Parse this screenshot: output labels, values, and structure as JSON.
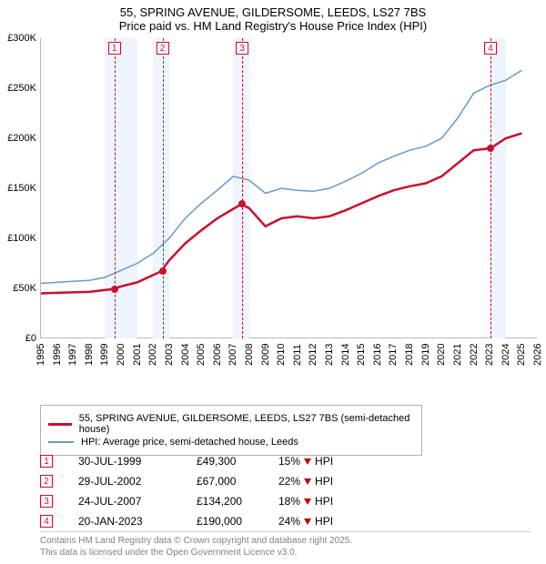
{
  "title_line1": "55, SPRING AVENUE, GILDERSOME, LEEDS, LS27 7BS",
  "title_line2": "Price paid vs. HM Land Registry's House Price Index (HPI)",
  "chart": {
    "type": "line",
    "background_color": "#ffffff",
    "shade_color": "#eef4fb",
    "x_min": 1995,
    "x_max": 2026,
    "y_min": 0,
    "y_max": 300000,
    "y_ticks": [
      {
        "v": 0,
        "label": "£0"
      },
      {
        "v": 50000,
        "label": "£50K"
      },
      {
        "v": 100000,
        "label": "£100K"
      },
      {
        "v": 150000,
        "label": "£150K"
      },
      {
        "v": 200000,
        "label": "£200K"
      },
      {
        "v": 250000,
        "label": "£250K"
      },
      {
        "v": 300000,
        "label": "£300K"
      }
    ],
    "x_ticks": [
      1995,
      1996,
      1997,
      1998,
      1999,
      2000,
      2001,
      2002,
      2003,
      2004,
      2005,
      2006,
      2007,
      2008,
      2009,
      2010,
      2011,
      2012,
      2013,
      2014,
      2015,
      2016,
      2017,
      2018,
      2019,
      2020,
      2021,
      2022,
      2023,
      2024,
      2025,
      2026
    ],
    "shade_bands": [
      {
        "from": 1999,
        "to": 2001
      },
      {
        "from": 2002,
        "to": 2003
      },
      {
        "from": 2007,
        "to": 2008
      },
      {
        "from": 2023,
        "to": 2024
      }
    ],
    "series_blue": {
      "color": "#6699cc",
      "width": 1.5,
      "points": [
        [
          1995,
          55000
        ],
        [
          1996,
          56000
        ],
        [
          1997,
          57000
        ],
        [
          1998,
          58000
        ],
        [
          1999,
          61000
        ],
        [
          2000,
          68000
        ],
        [
          2001,
          75000
        ],
        [
          2002,
          85000
        ],
        [
          2003,
          100000
        ],
        [
          2004,
          120000
        ],
        [
          2005,
          135000
        ],
        [
          2006,
          148000
        ],
        [
          2007,
          162000
        ],
        [
          2008,
          158000
        ],
        [
          2009,
          145000
        ],
        [
          2010,
          150000
        ],
        [
          2011,
          148000
        ],
        [
          2012,
          147000
        ],
        [
          2013,
          150000
        ],
        [
          2014,
          157000
        ],
        [
          2015,
          165000
        ],
        [
          2016,
          175000
        ],
        [
          2017,
          182000
        ],
        [
          2018,
          188000
        ],
        [
          2019,
          192000
        ],
        [
          2020,
          200000
        ],
        [
          2021,
          220000
        ],
        [
          2022,
          245000
        ],
        [
          2023,
          253000
        ],
        [
          2024,
          258000
        ],
        [
          2025,
          268000
        ]
      ]
    },
    "series_red": {
      "color": "#c8102e",
      "width": 2.5,
      "points": [
        [
          1995,
          45000
        ],
        [
          1996,
          45500
        ],
        [
          1997,
          46000
        ],
        [
          1998,
          46500
        ],
        [
          1999.5,
          49300
        ],
        [
          2000,
          52000
        ],
        [
          2001,
          56000
        ],
        [
          2002.5,
          67000
        ],
        [
          2003,
          78000
        ],
        [
          2004,
          95000
        ],
        [
          2005,
          108000
        ],
        [
          2006,
          120000
        ],
        [
          2007.5,
          134200
        ],
        [
          2008,
          130000
        ],
        [
          2009,
          112000
        ],
        [
          2010,
          120000
        ],
        [
          2011,
          122000
        ],
        [
          2012,
          120000
        ],
        [
          2013,
          122000
        ],
        [
          2014,
          128000
        ],
        [
          2015,
          135000
        ],
        [
          2016,
          142000
        ],
        [
          2017,
          148000
        ],
        [
          2018,
          152000
        ],
        [
          2019,
          155000
        ],
        [
          2020,
          162000
        ],
        [
          2021,
          175000
        ],
        [
          2022,
          188000
        ],
        [
          2023.05,
          190000
        ],
        [
          2024,
          200000
        ],
        [
          2025,
          205000
        ]
      ]
    },
    "markers": [
      {
        "n": "1",
        "x": 1999.58,
        "y": 49300
      },
      {
        "n": "2",
        "x": 2002.58,
        "y": 67000
      },
      {
        "n": "3",
        "x": 2007.56,
        "y": 134200
      },
      {
        "n": "4",
        "x": 2023.05,
        "y": 190000
      }
    ]
  },
  "legend": {
    "red": "55, SPRING AVENUE, GILDERSOME, LEEDS, LS27 7BS (semi-detached house)",
    "blue": "HPI: Average price, semi-detached house, Leeds"
  },
  "sales": [
    {
      "n": "1",
      "date": "30-JUL-1999",
      "price": "£49,300",
      "diff": "15%",
      "vs": "HPI"
    },
    {
      "n": "2",
      "date": "29-JUL-2002",
      "price": "£67,000",
      "diff": "22%",
      "vs": "HPI"
    },
    {
      "n": "3",
      "date": "24-JUL-2007",
      "price": "£134,200",
      "diff": "18%",
      "vs": "HPI"
    },
    {
      "n": "4",
      "date": "20-JAN-2023",
      "price": "£190,000",
      "diff": "24%",
      "vs": "HPI"
    }
  ],
  "footer_l1": "Contains HM Land Registry data © Crown copyright and database right 2025.",
  "footer_l2": "This data is licensed under the Open Government Licence v3.0."
}
